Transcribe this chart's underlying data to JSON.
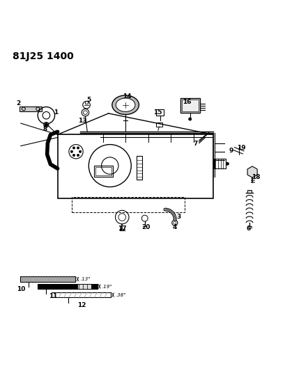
{
  "title": "81J25 1400",
  "bg_color": "#ffffff",
  "note_13_inch": ".13\"",
  "note_19_inch": ".19\"",
  "note_38_inch": ".38\""
}
